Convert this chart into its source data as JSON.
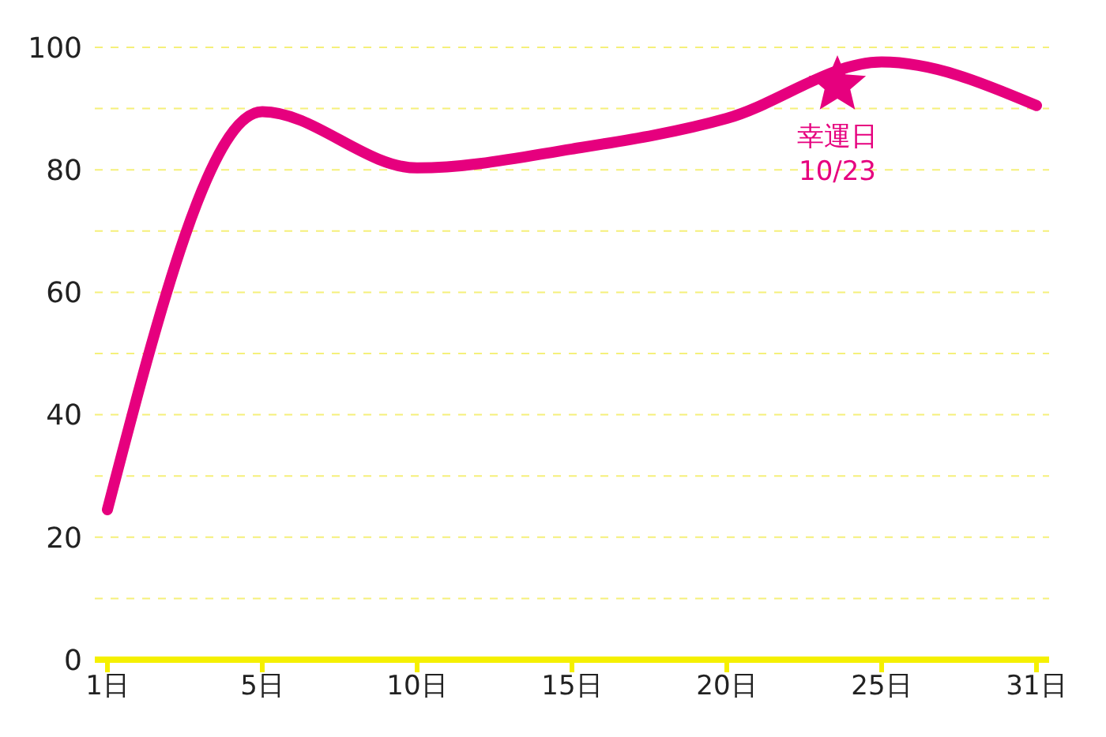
{
  "chart_data": {
    "type": "line",
    "categories": [
      "1日",
      "5日",
      "10日",
      "15日",
      "20日",
      "25日",
      "31日"
    ],
    "series": [
      {
        "color": "#e6007e",
        "values": [
          24.5,
          89.5,
          80.3,
          83.4,
          88.4,
          97.6,
          90.5
        ]
      }
    ],
    "ylim": [
      0,
      100
    ],
    "yticks": [
      0,
      {
        "value": 10,
        "label": null
      },
      20,
      {
        "value": 30,
        "label": null
      },
      40,
      {
        "value": 50,
        "label": null
      },
      60,
      {
        "value": 70,
        "label": null
      },
      80,
      {
        "value": 90,
        "label": null
      },
      100
    ],
    "grid": "y",
    "marker": "none",
    "line_style": "solid",
    "annotations": [
      "幸運日\n10/23"
    ]
  }
}
